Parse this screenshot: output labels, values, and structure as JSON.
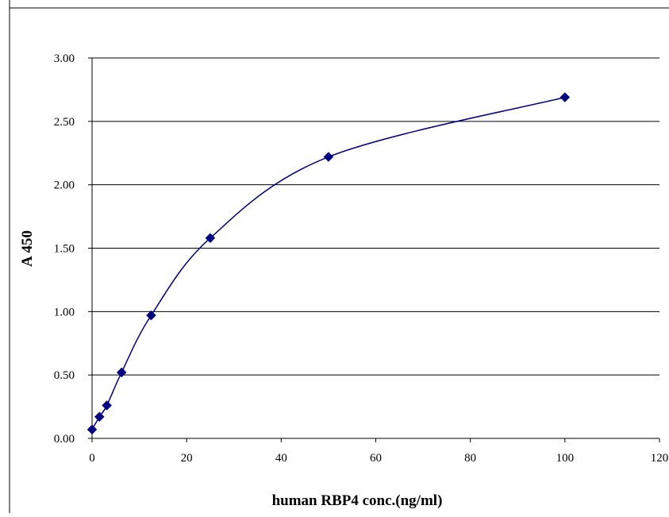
{
  "chart_data": {
    "type": "scatter",
    "title": "",
    "xlabel": "human RBP4 conc.(ng/ml)",
    "ylabel": "A 450",
    "xlim": [
      0,
      120
    ],
    "ylim": [
      0,
      3.0
    ],
    "x_ticks": [
      "0",
      "20",
      "40",
      "60",
      "80",
      "100",
      "120"
    ],
    "y_ticks": [
      "0.00",
      "0.50",
      "1.00",
      "1.50",
      "2.00",
      "2.50",
      "3.00"
    ],
    "grid": "horizontal",
    "legend": "none",
    "smoothed_line": true,
    "series": [
      {
        "color": "#000080",
        "marker": "diamond",
        "x": [
          0,
          1.56,
          3.13,
          6.25,
          12.5,
          25,
          50,
          100
        ],
        "y": [
          0.07,
          0.17,
          0.26,
          0.52,
          0.97,
          1.58,
          2.22,
          2.69
        ]
      }
    ]
  }
}
